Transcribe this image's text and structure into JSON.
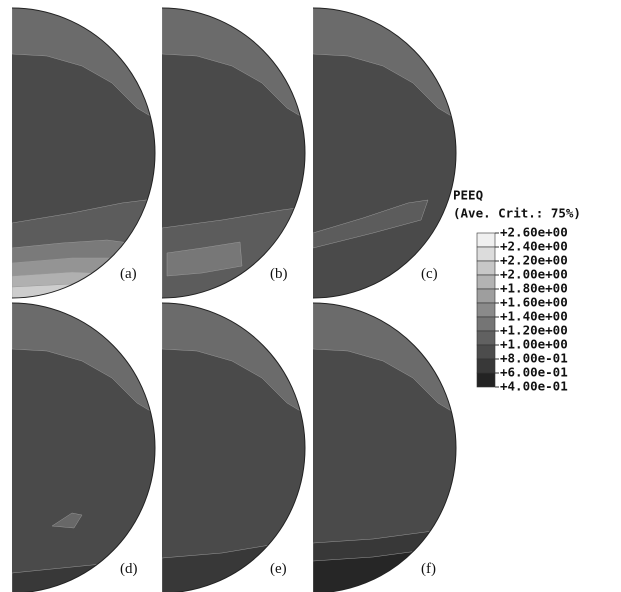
{
  "panels": [
    {
      "label": "(a)"
    },
    {
      "label": "(b)"
    },
    {
      "label": "(c)"
    },
    {
      "label": "(d)"
    },
    {
      "label": "(e)"
    },
    {
      "label": "(f)"
    }
  ],
  "legend": {
    "title": "PEEQ",
    "subtitle": "(Ave. Crit.: 75%)",
    "labels": [
      "+2.60e+00",
      "+2.40e+00",
      "+2.20e+00",
      "+2.00e+00",
      "+1.80e+00",
      "+1.60e+00",
      "+1.40e+00",
      "+1.20e+00",
      "+1.00e+00",
      "+8.00e-01",
      "+6.00e-01",
      "+4.00e-01"
    ]
  }
}
